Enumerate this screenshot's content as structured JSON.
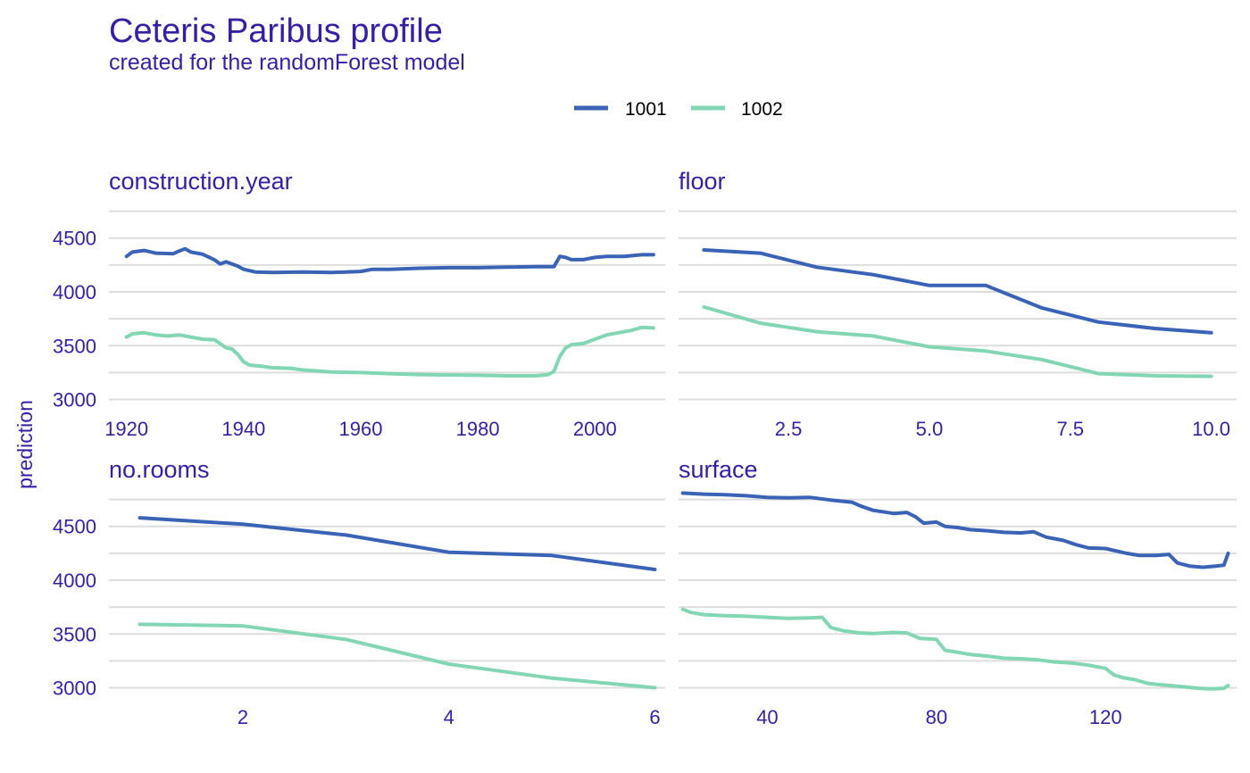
{
  "title": "Ceteris Paribus profile",
  "subtitle": "created for the randomForest model",
  "colors": {
    "1001": "#3a63b5",
    "1002": "#82d6b4",
    "text": "#371ea3",
    "grid": "#dedede"
  },
  "chart_data": {
    "type": "line",
    "ylabel": "prediction",
    "legend": {
      "position": "top",
      "entries": [
        "1001",
        "1002"
      ]
    },
    "grid": true,
    "ylim": [
      2880,
      4780
    ],
    "yticks": [
      3000,
      3500,
      4000,
      4500
    ],
    "panels": [
      {
        "name": "construction.year",
        "xlim": [
          1917,
          2012
        ],
        "xticks": [
          "1920",
          "1940",
          "1960",
          "1980",
          "2000"
        ],
        "series": [
          {
            "name": "1001",
            "points": [
              [
                1920,
                4330
              ],
              [
                1921,
                4370
              ],
              [
                1923,
                4385
              ],
              [
                1925,
                4360
              ],
              [
                1928,
                4355
              ],
              [
                1929,
                4380
              ],
              [
                1930,
                4400
              ],
              [
                1931,
                4370
              ],
              [
                1933,
                4350
              ],
              [
                1935,
                4300
              ],
              [
                1936,
                4260
              ],
              [
                1937,
                4280
              ],
              [
                1939,
                4240
              ],
              [
                1940,
                4210
              ],
              [
                1942,
                4185
              ],
              [
                1945,
                4180
              ],
              [
                1950,
                4185
              ],
              [
                1955,
                4180
              ],
              [
                1960,
                4190
              ],
              [
                1962,
                4210
              ],
              [
                1965,
                4210
              ],
              [
                1970,
                4220
              ],
              [
                1975,
                4225
              ],
              [
                1980,
                4225
              ],
              [
                1985,
                4230
              ],
              [
                1990,
                4235
              ],
              [
                1993,
                4235
              ],
              [
                1994,
                4330
              ],
              [
                1995,
                4320
              ],
              [
                1996,
                4300
              ],
              [
                1998,
                4300
              ],
              [
                2000,
                4320
              ],
              [
                2002,
                4330
              ],
              [
                2005,
                4330
              ],
              [
                2008,
                4345
              ],
              [
                2010,
                4345
              ]
            ]
          },
          {
            "name": "1002",
            "points": [
              [
                1920,
                3580
              ],
              [
                1921,
                3610
              ],
              [
                1923,
                3620
              ],
              [
                1925,
                3600
              ],
              [
                1927,
                3590
              ],
              [
                1929,
                3600
              ],
              [
                1931,
                3580
              ],
              [
                1933,
                3560
              ],
              [
                1935,
                3555
              ],
              [
                1936,
                3520
              ],
              [
                1937,
                3480
              ],
              [
                1938,
                3470
              ],
              [
                1939,
                3420
              ],
              [
                1940,
                3350
              ],
              [
                1941,
                3320
              ],
              [
                1943,
                3310
              ],
              [
                1945,
                3295
              ],
              [
                1948,
                3290
              ],
              [
                1950,
                3275
              ],
              [
                1955,
                3255
              ],
              [
                1960,
                3250
              ],
              [
                1965,
                3240
              ],
              [
                1970,
                3232
              ],
              [
                1975,
                3228
              ],
              [
                1980,
                3225
              ],
              [
                1985,
                3220
              ],
              [
                1990,
                3220
              ],
              [
                1992,
                3230
              ],
              [
                1993,
                3260
              ],
              [
                1994,
                3400
              ],
              [
                1995,
                3480
              ],
              [
                1996,
                3510
              ],
              [
                1998,
                3520
              ],
              [
                2000,
                3560
              ],
              [
                2002,
                3600
              ],
              [
                2004,
                3620
              ],
              [
                2006,
                3640
              ],
              [
                2008,
                3670
              ],
              [
                2010,
                3665
              ]
            ]
          }
        ]
      },
      {
        "name": "floor",
        "xlim": [
          0.55,
          10.45
        ],
        "xticks": [
          "2.5",
          "5.0",
          "7.5",
          "10.0"
        ],
        "series": [
          {
            "name": "1001",
            "points": [
              [
                1,
                4390
              ],
              [
                2,
                4360
              ],
              [
                3,
                4230
              ],
              [
                4,
                4160
              ],
              [
                5,
                4060
              ],
              [
                6,
                4060
              ],
              [
                7,
                3850
              ],
              [
                8,
                3720
              ],
              [
                9,
                3660
              ],
              [
                10,
                3620
              ]
            ]
          },
          {
            "name": "1002",
            "points": [
              [
                1,
                3860
              ],
              [
                2,
                3710
              ],
              [
                3,
                3630
              ],
              [
                4,
                3590
              ],
              [
                5,
                3490
              ],
              [
                6,
                3450
              ],
              [
                7,
                3370
              ],
              [
                8,
                3240
              ],
              [
                9,
                3220
              ],
              [
                10,
                3215
              ]
            ]
          }
        ]
      },
      {
        "name": "no.rooms",
        "xlim": [
          0.7,
          6.1
        ],
        "xticks": [
          "2",
          "4",
          "6"
        ],
        "series": [
          {
            "name": "1001",
            "points": [
              [
                1,
                4580
              ],
              [
                2,
                4520
              ],
              [
                3,
                4420
              ],
              [
                4,
                4260
              ],
              [
                5,
                4230
              ],
              [
                6,
                4100
              ]
            ]
          },
          {
            "name": "1002",
            "points": [
              [
                1,
                3590
              ],
              [
                2,
                3575
              ],
              [
                3,
                3450
              ],
              [
                4,
                3220
              ],
              [
                5,
                3090
              ],
              [
                6,
                3000
              ]
            ]
          }
        ]
      },
      {
        "name": "surface",
        "xlim": [
          19,
          151
        ],
        "xticks": [
          "40",
          "80",
          "120"
        ],
        "series": [
          {
            "name": "1001",
            "points": [
              [
                20,
                4810
              ],
              [
                25,
                4800
              ],
              [
                30,
                4795
              ],
              [
                35,
                4785
              ],
              [
                40,
                4770
              ],
              [
                45,
                4765
              ],
              [
                50,
                4770
              ],
              [
                55,
                4745
              ],
              [
                60,
                4725
              ],
              [
                62,
                4690
              ],
              [
                65,
                4650
              ],
              [
                70,
                4620
              ],
              [
                73,
                4630
              ],
              [
                75,
                4590
              ],
              [
                77,
                4530
              ],
              [
                80,
                4540
              ],
              [
                82,
                4500
              ],
              [
                85,
                4490
              ],
              [
                88,
                4470
              ],
              [
                92,
                4460
              ],
              [
                96,
                4445
              ],
              [
                100,
                4440
              ],
              [
                103,
                4450
              ],
              [
                106,
                4400
              ],
              [
                110,
                4370
              ],
              [
                113,
                4330
              ],
              [
                116,
                4300
              ],
              [
                120,
                4295
              ],
              [
                125,
                4250
              ],
              [
                128,
                4230
              ],
              [
                132,
                4230
              ],
              [
                135,
                4240
              ],
              [
                137,
                4160
              ],
              [
                140,
                4130
              ],
              [
                143,
                4120
              ],
              [
                146,
                4130
              ],
              [
                148,
                4140
              ],
              [
                149,
                4250
              ]
            ]
          },
          {
            "name": "1002",
            "points": [
              [
                20,
                3730
              ],
              [
                22,
                3700
              ],
              [
                25,
                3680
              ],
              [
                30,
                3670
              ],
              [
                35,
                3665
              ],
              [
                40,
                3655
              ],
              [
                45,
                3645
              ],
              [
                50,
                3650
              ],
              [
                53,
                3655
              ],
              [
                55,
                3560
              ],
              [
                58,
                3530
              ],
              [
                62,
                3510
              ],
              [
                65,
                3505
              ],
              [
                70,
                3515
              ],
              [
                73,
                3510
              ],
              [
                76,
                3460
              ],
              [
                80,
                3450
              ],
              [
                82,
                3350
              ],
              [
                85,
                3330
              ],
              [
                88,
                3310
              ],
              [
                92,
                3295
              ],
              [
                96,
                3275
              ],
              [
                100,
                3270
              ],
              [
                104,
                3260
              ],
              [
                108,
                3240
              ],
              [
                112,
                3230
              ],
              [
                116,
                3210
              ],
              [
                120,
                3180
              ],
              [
                122,
                3120
              ],
              [
                124,
                3095
              ],
              [
                127,
                3075
              ],
              [
                130,
                3040
              ],
              [
                134,
                3025
              ],
              [
                138,
                3010
              ],
              [
                142,
                2995
              ],
              [
                145,
                2990
              ],
              [
                148,
                2995
              ],
              [
                149,
                3020
              ]
            ]
          }
        ]
      }
    ]
  }
}
